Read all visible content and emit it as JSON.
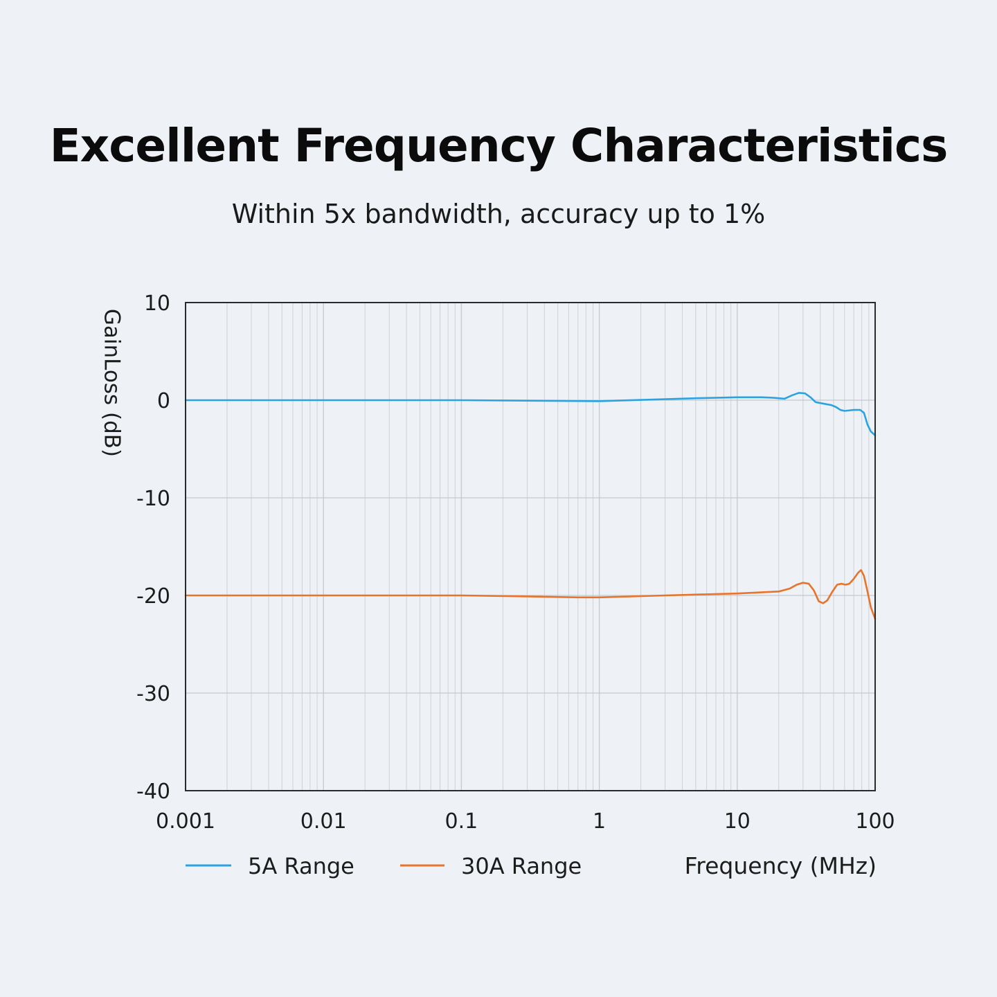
{
  "header": {
    "title": "Excellent Frequency Characteristics",
    "subtitle": "Within 5x bandwidth, accuracy up to 1%"
  },
  "colors": {
    "background": "#eef2f6",
    "grid": "#c4c7cb",
    "axis": "#2a2a2a",
    "series_5a": "#2ba3e0",
    "series_30a": "#e8732a"
  },
  "chart_data": {
    "type": "line",
    "x_scale": "log",
    "xlim": [
      0.001,
      100
    ],
    "ylim": [
      -40,
      10
    ],
    "xlabel": "Frequency (MHz)",
    "ylabel": "GainLoss (dB)",
    "x_ticks": [
      "0.001",
      "0.01",
      "0.1",
      "1",
      "10",
      "100"
    ],
    "y_ticks": [
      "10",
      "0",
      "-10",
      "-20",
      "-30",
      "-40"
    ],
    "grid": true,
    "legend_position": "bottom",
    "series": [
      {
        "name": "5A Range",
        "color": "#2ba3e0",
        "points": [
          [
            0.001,
            0.0
          ],
          [
            0.01,
            0.0
          ],
          [
            0.1,
            0.0
          ],
          [
            0.3,
            -0.05
          ],
          [
            1,
            -0.1
          ],
          [
            3,
            0.1
          ],
          [
            5,
            0.2
          ],
          [
            10,
            0.3
          ],
          [
            15,
            0.3
          ],
          [
            18,
            0.25
          ],
          [
            20,
            0.2
          ],
          [
            22,
            0.15
          ],
          [
            25,
            0.5
          ],
          [
            28,
            0.75
          ],
          [
            31,
            0.7
          ],
          [
            34,
            0.3
          ],
          [
            37,
            -0.2
          ],
          [
            42,
            -0.35
          ],
          [
            48,
            -0.5
          ],
          [
            52,
            -0.7
          ],
          [
            56,
            -1.0
          ],
          [
            60,
            -1.1
          ],
          [
            70,
            -1.0
          ],
          [
            78,
            -1.0
          ],
          [
            83,
            -1.3
          ],
          [
            88,
            -2.5
          ],
          [
            93,
            -3.2
          ],
          [
            100,
            -3.6
          ]
        ]
      },
      {
        "name": "30A Range",
        "color": "#e8732a",
        "points": [
          [
            0.001,
            -20.0
          ],
          [
            0.01,
            -20.0
          ],
          [
            0.1,
            -20.0
          ],
          [
            0.3,
            -20.1
          ],
          [
            0.7,
            -20.2
          ],
          [
            1,
            -20.2
          ],
          [
            3,
            -20.0
          ],
          [
            10,
            -19.8
          ],
          [
            20,
            -19.6
          ],
          [
            24,
            -19.3
          ],
          [
            27,
            -18.9
          ],
          [
            30,
            -18.7
          ],
          [
            33,
            -18.8
          ],
          [
            36,
            -19.5
          ],
          [
            39,
            -20.6
          ],
          [
            42,
            -20.8
          ],
          [
            45,
            -20.5
          ],
          [
            49,
            -19.6
          ],
          [
            53,
            -18.9
          ],
          [
            57,
            -18.8
          ],
          [
            61,
            -18.9
          ],
          [
            65,
            -18.8
          ],
          [
            70,
            -18.3
          ],
          [
            75,
            -17.7
          ],
          [
            79,
            -17.4
          ],
          [
            83,
            -18.0
          ],
          [
            88,
            -19.6
          ],
          [
            93,
            -21.2
          ],
          [
            100,
            -22.4
          ]
        ]
      }
    ]
  }
}
